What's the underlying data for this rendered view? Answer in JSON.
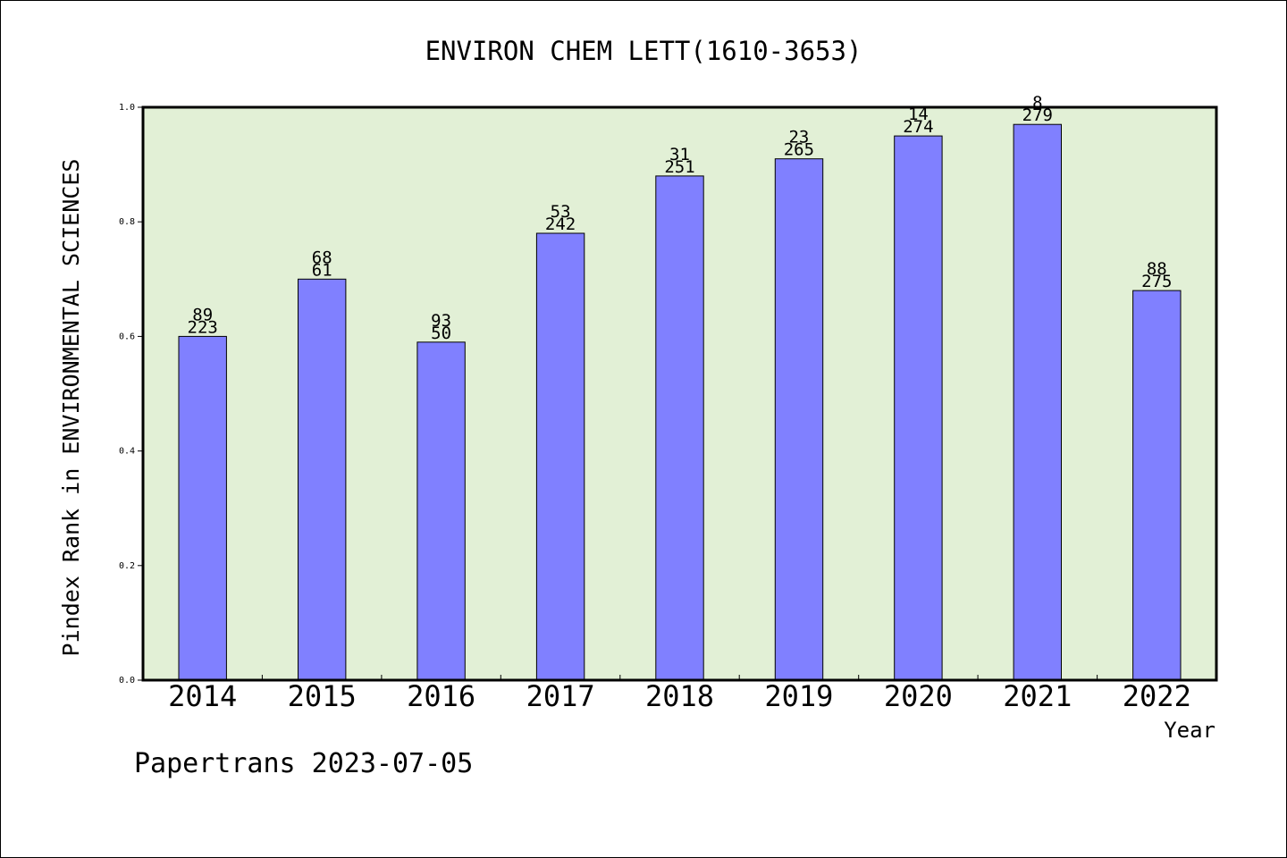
{
  "chart_data": {
    "type": "bar",
    "title": "ENVIRON CHEM LETT(1610-3653)",
    "xlabel": "Year",
    "ylabel": "Pindex Rank in ENVIRONMENTAL SCIENCES",
    "ylim": [
      0,
      1.0
    ],
    "yticks": [
      "0.0",
      "0.2",
      "0.4",
      "0.6",
      "0.8",
      "1.0"
    ],
    "categories": [
      "2014",
      "2015",
      "2016",
      "2017",
      "2018",
      "2019",
      "2020",
      "2021",
      "2022"
    ],
    "values": [
      0.6,
      0.7,
      0.59,
      0.78,
      0.88,
      0.91,
      0.95,
      0.97,
      0.68
    ],
    "labels_top": [
      "89",
      "68",
      "93",
      "53",
      "31",
      "23",
      "14",
      "8",
      "88"
    ],
    "labels_bottom": [
      "223",
      "61",
      "50",
      "242",
      "251",
      "265",
      "274",
      "279",
      "275"
    ],
    "grid": false,
    "colors": {
      "plot_background": "#e2f0d6",
      "bar_fill": "#8080ff",
      "bar_stroke": "#000000"
    }
  },
  "footer": {
    "text": "Papertrans 2023-07-05"
  }
}
